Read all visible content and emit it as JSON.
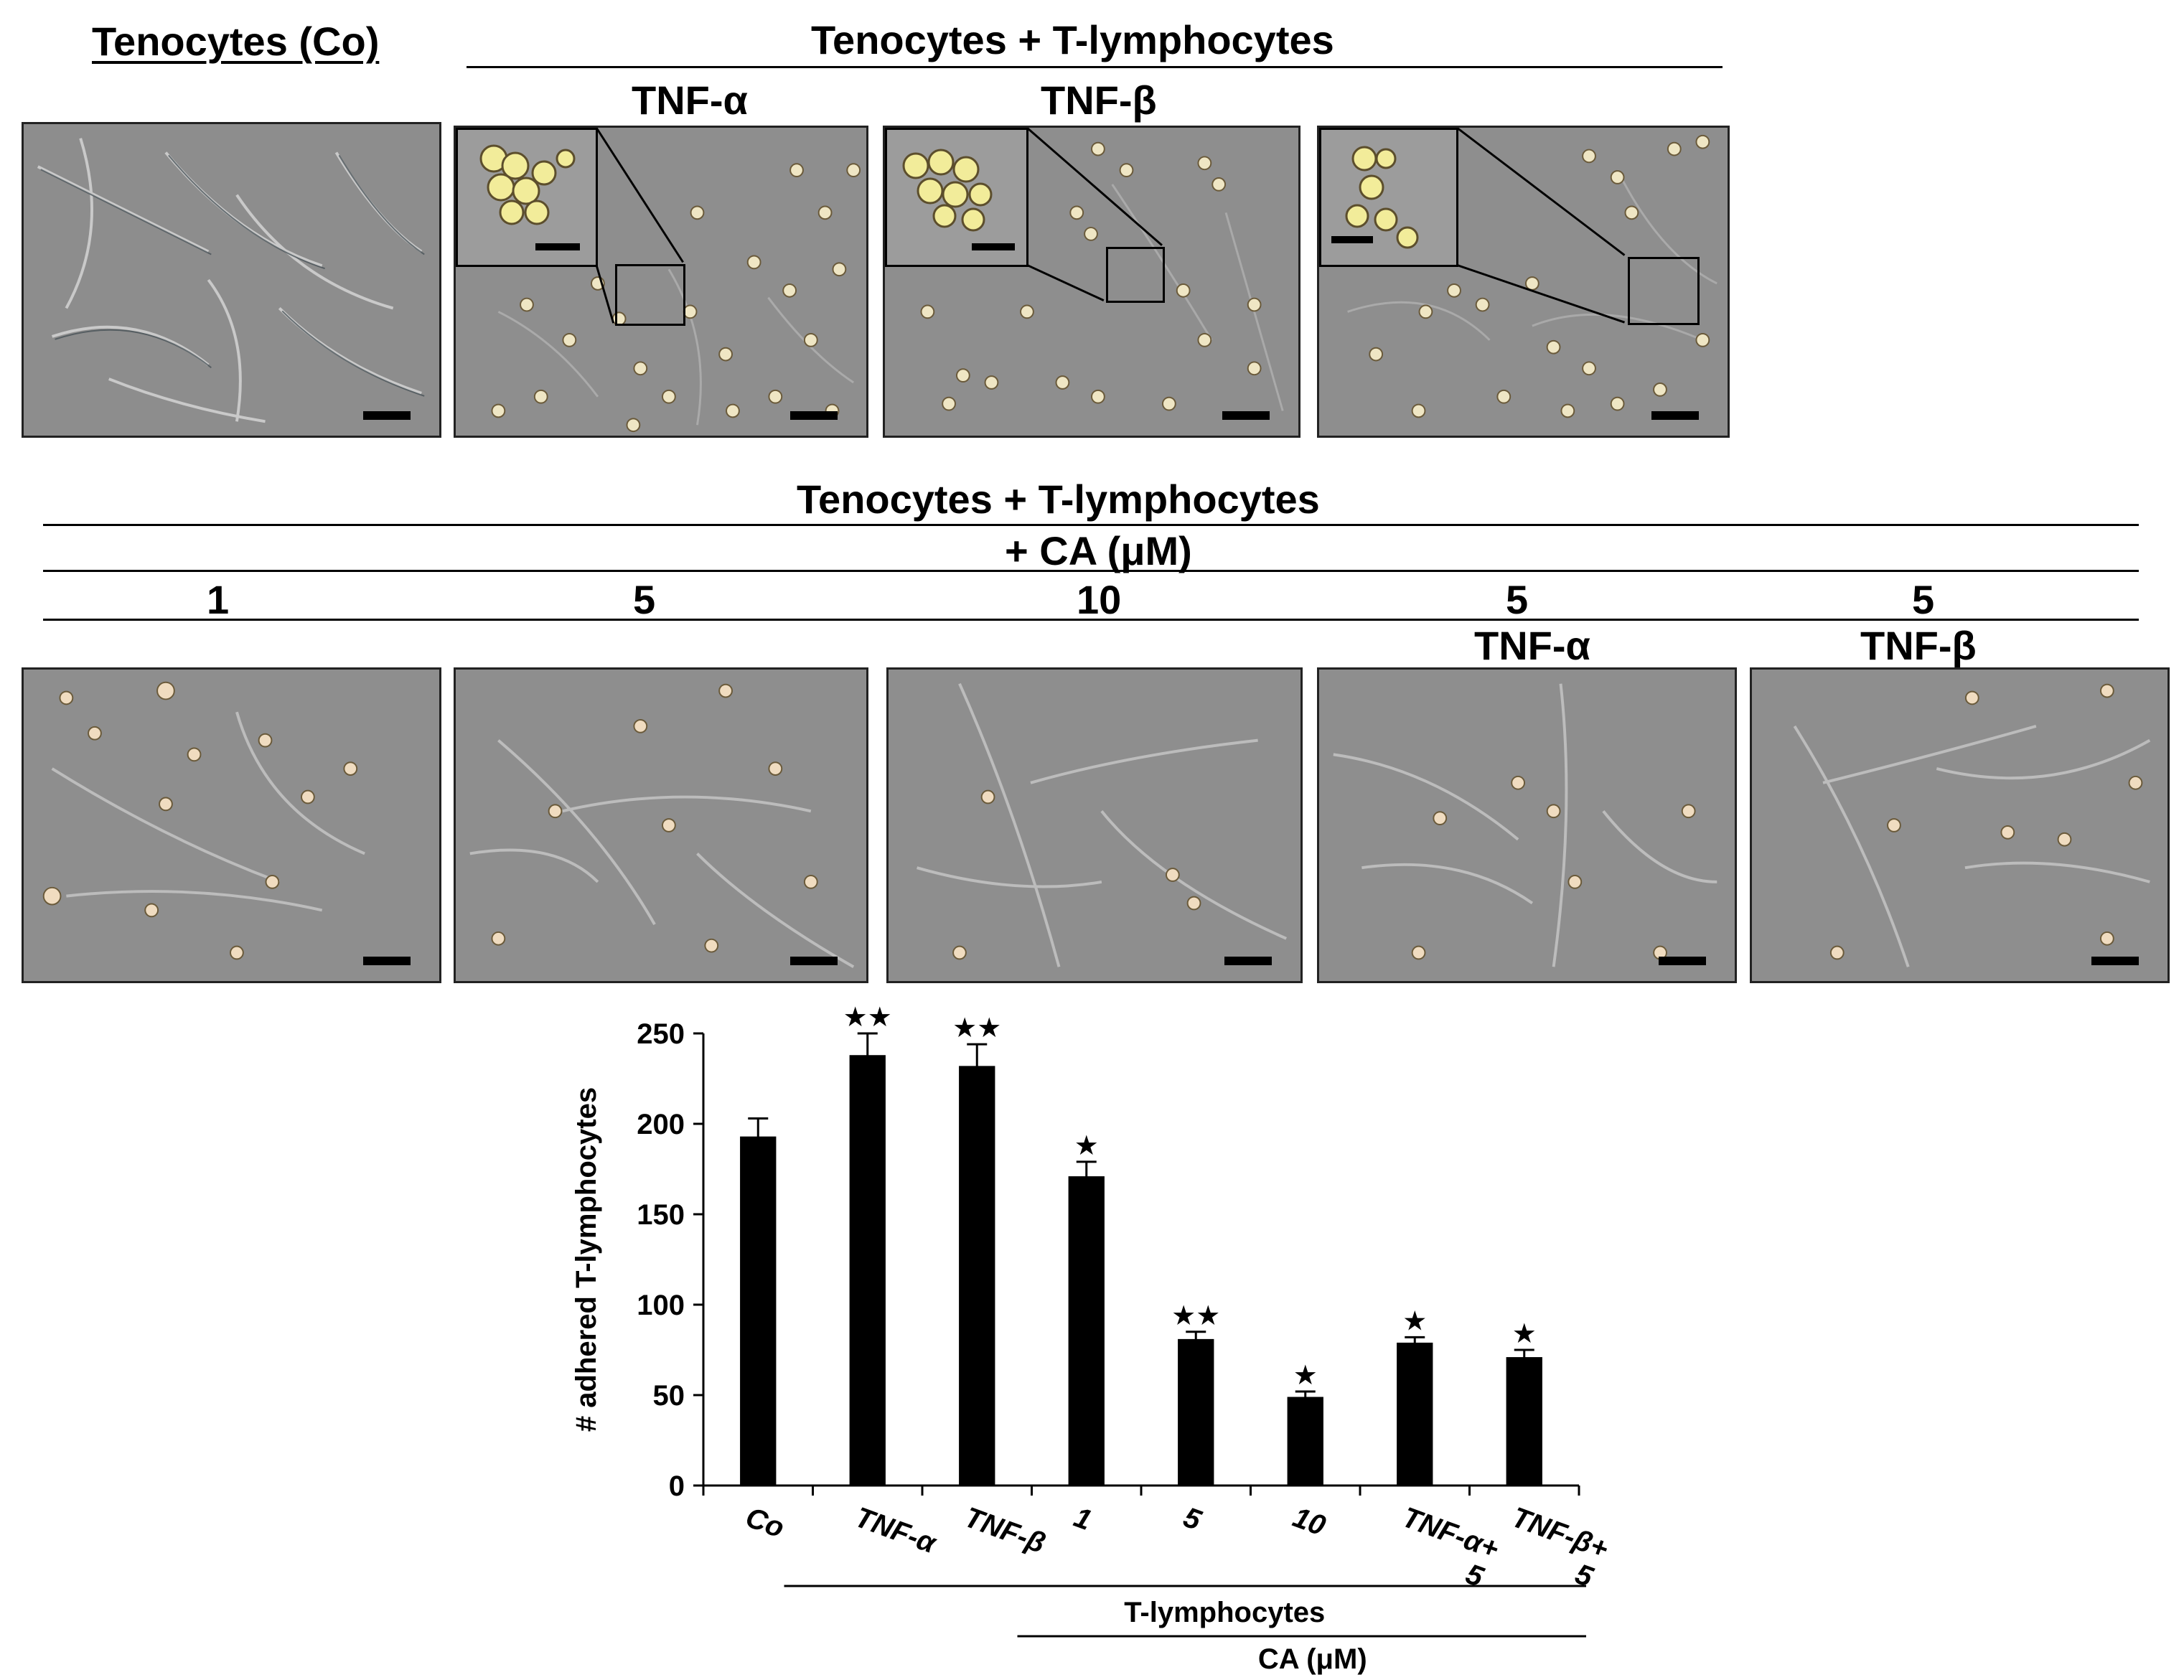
{
  "figure": {
    "top_row": {
      "control_header": "Tenocytes (Co)",
      "group_header": "Tenocytes + T-lymphocytes",
      "panel_labels": [
        "TNF-α",
        "TNF-β"
      ]
    },
    "bottom_row": {
      "header_line1": "Tenocytes + T-lymphocytes",
      "header_line2": "+ CA (μM)",
      "concentrations": [
        "1",
        "5",
        "10",
        "5",
        "5"
      ],
      "sub_labels": [
        "TNF-α",
        "TNF-β"
      ]
    }
  },
  "chart_data": {
    "type": "bar",
    "ylabel": "# adhered T-lymphocytes",
    "ylim": [
      0,
      250
    ],
    "yticks": [
      0,
      50,
      100,
      150,
      200,
      250
    ],
    "categories": [
      "Co",
      "TNF-α",
      "TNF-β",
      "1",
      "5",
      "10",
      "TNF-α+ 5",
      "TNF-β+ 5"
    ],
    "category_lines": [
      [
        "Co"
      ],
      [
        "TNF-α"
      ],
      [
        "TNF-β"
      ],
      [
        "1"
      ],
      [
        "5"
      ],
      [
        "10"
      ],
      [
        "TNF-α+",
        "5"
      ],
      [
        "TNF-β+",
        "5"
      ]
    ],
    "values": [
      193,
      238,
      232,
      171,
      81,
      49,
      79,
      71
    ],
    "errors": [
      10,
      12,
      12,
      8,
      4,
      3,
      3,
      4
    ],
    "significance": [
      "",
      "★★",
      "★★",
      "★",
      "★★",
      "★",
      "★",
      "★"
    ],
    "group_label_1": "T-lymphocytes",
    "group_label_2": "CA  (μM)",
    "bar_color": "#000000"
  }
}
